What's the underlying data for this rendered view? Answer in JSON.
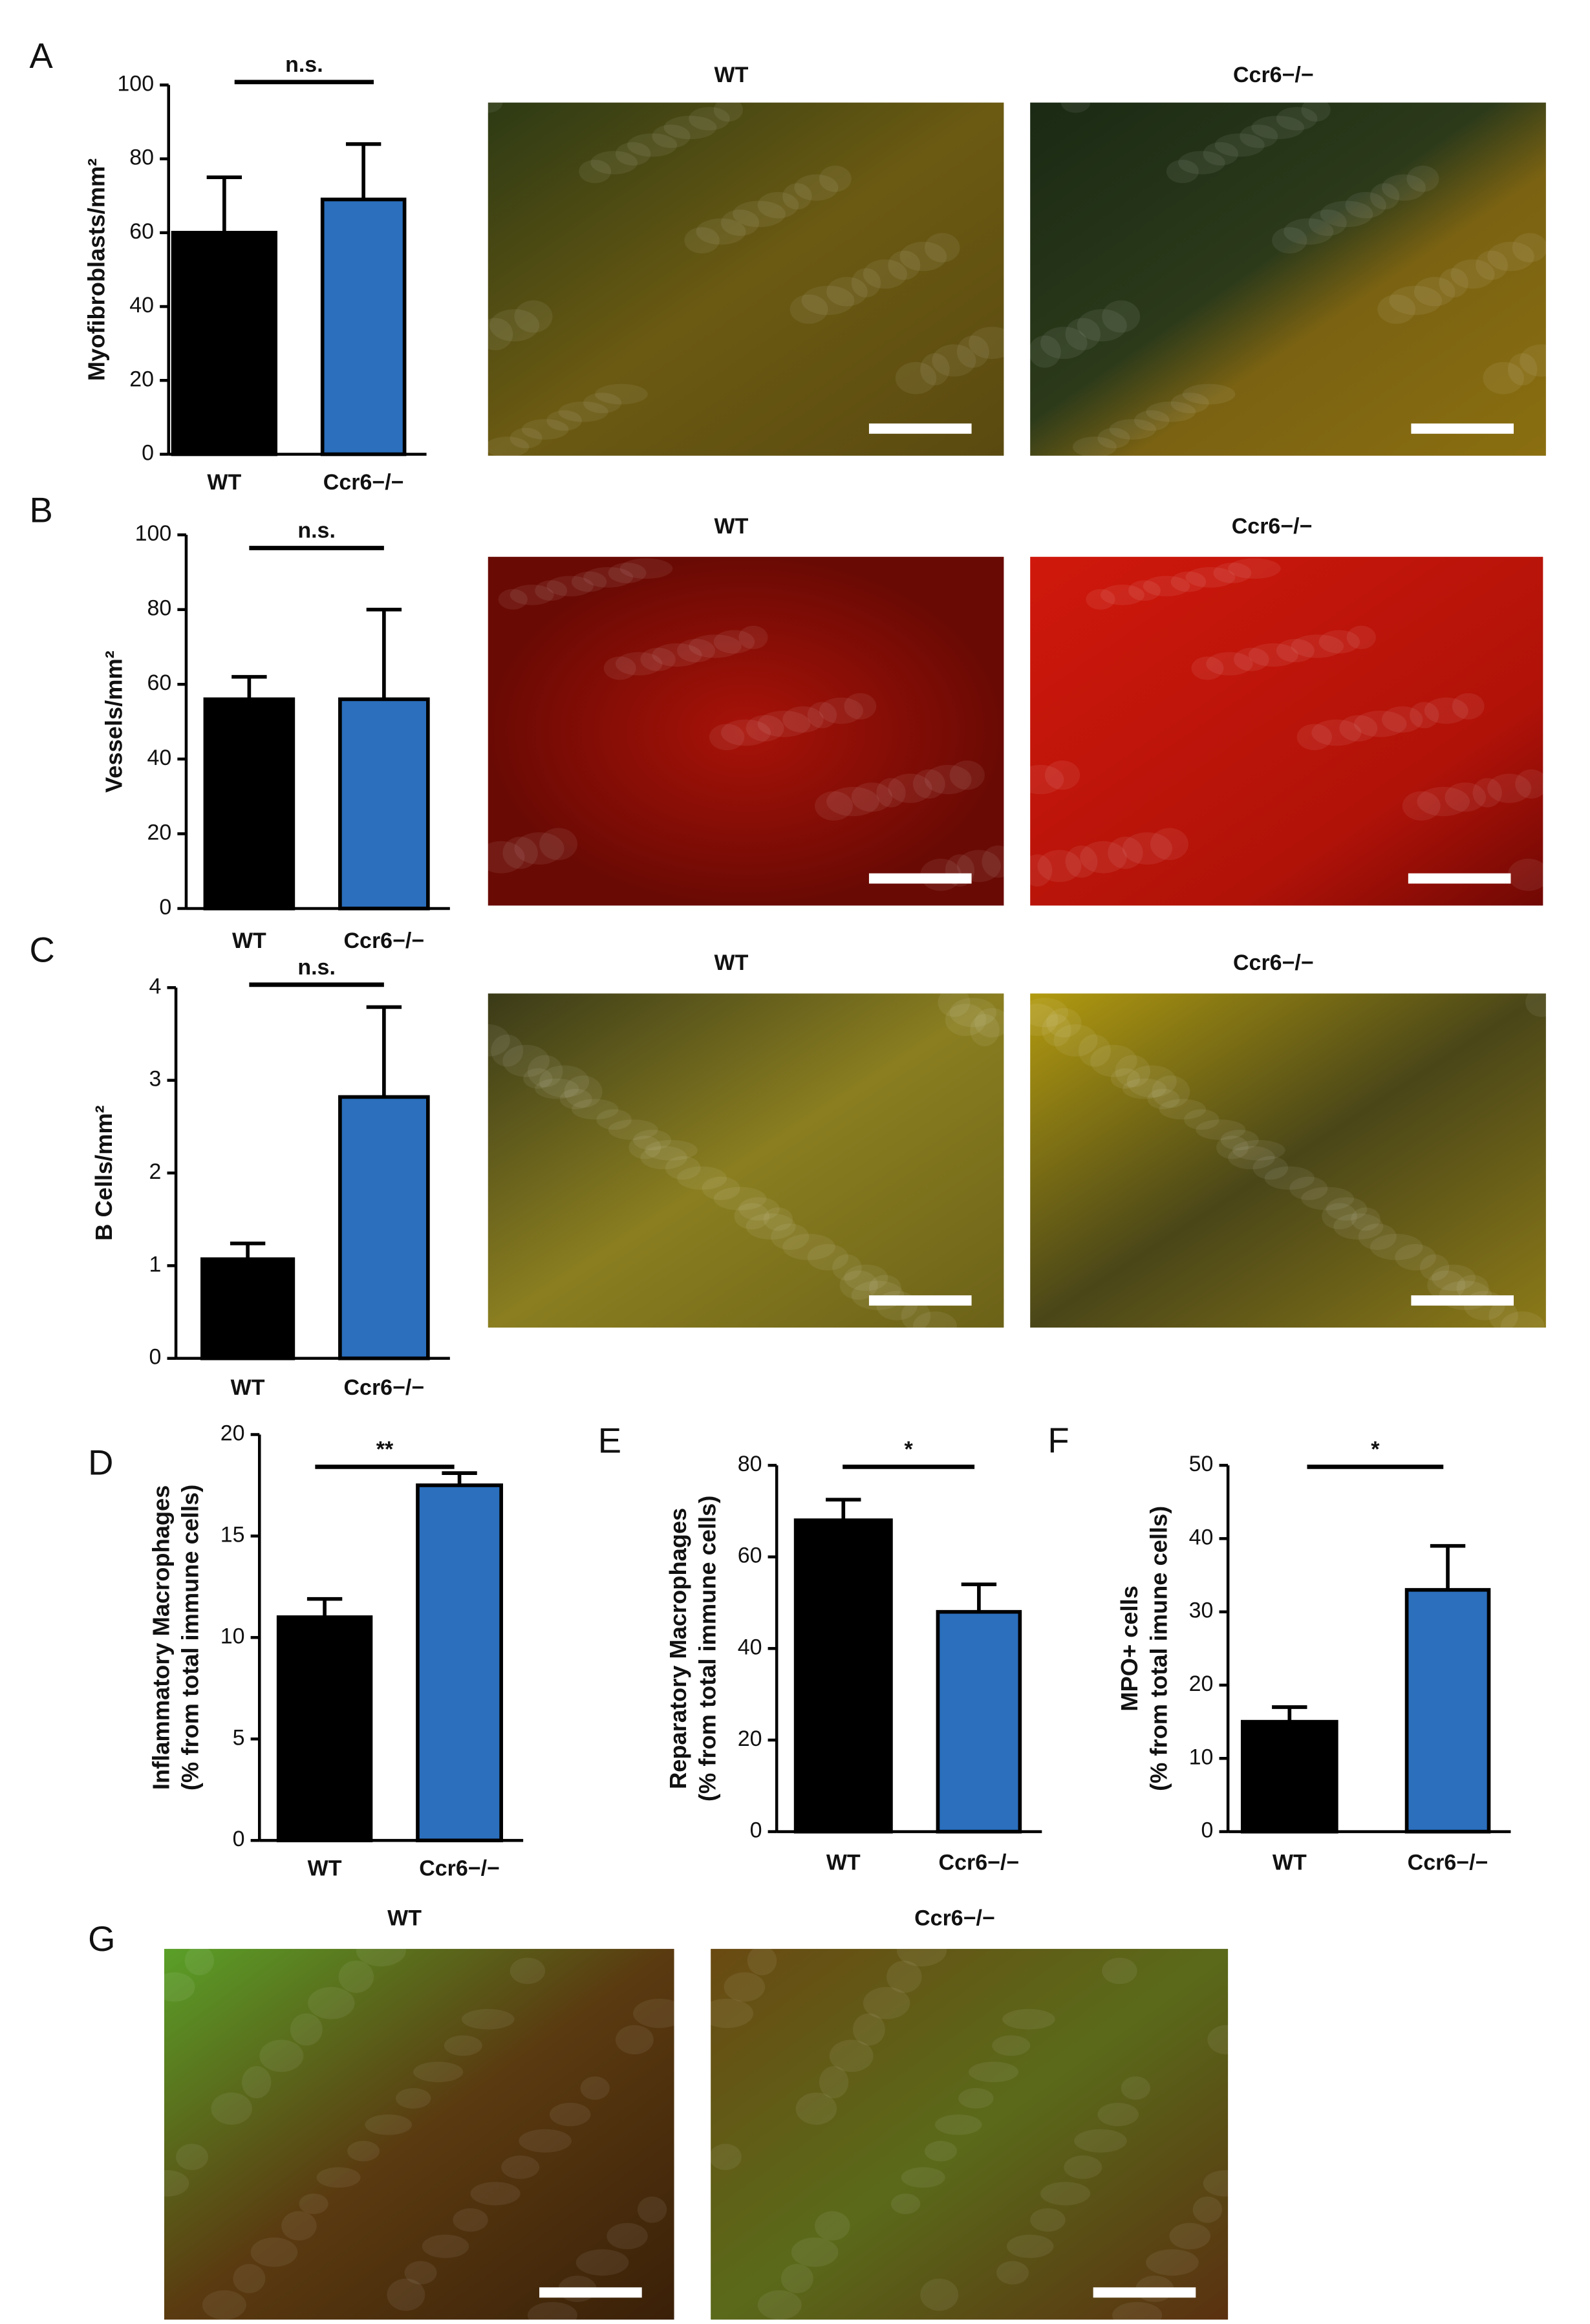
{
  "chart_data": [
    {
      "type": "bar",
      "panel": "A",
      "y_label": [
        "Myofibroblasts/mm²"
      ],
      "categories": [
        "WT",
        "Ccr6−/−"
      ],
      "values": [
        60,
        69
      ],
      "errors": [
        15,
        15
      ],
      "colors": [
        "#000000",
        "#2b6fbd"
      ],
      "ylim": [
        0,
        100
      ],
      "yticks": [
        0,
        20,
        40,
        60,
        80,
        100
      ],
      "annotation": "n.s.",
      "image_labels": [
        "WT",
        "Ccr6−/−"
      ]
    },
    {
      "type": "bar",
      "panel": "B",
      "y_label": [
        "Vessels/mm²"
      ],
      "categories": [
        "WT",
        "Ccr6−/−"
      ],
      "values": [
        56,
        56
      ],
      "errors": [
        6,
        24
      ],
      "colors": [
        "#000000",
        "#2b6fbd"
      ],
      "ylim": [
        0,
        100
      ],
      "yticks": [
        0,
        20,
        40,
        60,
        80,
        100
      ],
      "annotation": "n.s.",
      "image_labels": [
        "WT",
        "Ccr6−/−"
      ]
    },
    {
      "type": "bar",
      "panel": "C",
      "y_label": [
        "B Cells/mm²"
      ],
      "categories": [
        "WT",
        "Ccr6−/−"
      ],
      "values": [
        1.07,
        2.82
      ],
      "errors": [
        0.17,
        0.97
      ],
      "colors": [
        "#000000",
        "#2b6fbd"
      ],
      "ylim": [
        0,
        4
      ],
      "yticks": [
        0,
        1,
        2,
        3,
        4
      ],
      "annotation": "n.s.",
      "image_labels": [
        "WT",
        "Ccr6−/−"
      ]
    },
    {
      "type": "bar",
      "panel": "D",
      "y_label": [
        "Inflammatory Macrophages",
        "(% from total immune cells)"
      ],
      "categories": [
        "WT",
        "Ccr6−/−"
      ],
      "values": [
        11,
        17.5
      ],
      "errors": [
        0.9,
        0.6
      ],
      "colors": [
        "#000000",
        "#2b6fbd"
      ],
      "ylim": [
        0,
        20
      ],
      "yticks": [
        0,
        5,
        10,
        15,
        20
      ],
      "annotation": "**"
    },
    {
      "type": "bar",
      "panel": "E",
      "y_label": [
        "Reparatory Macrophages",
        "(% from total immune cells)"
      ],
      "categories": [
        "WT",
        "Ccr6−/−"
      ],
      "values": [
        68,
        48
      ],
      "errors": [
        4.5,
        6
      ],
      "colors": [
        "#000000",
        "#2b6fbd"
      ],
      "ylim": [
        0,
        80
      ],
      "yticks": [
        0,
        20,
        40,
        60,
        80
      ],
      "annotation": "*"
    },
    {
      "type": "bar",
      "panel": "F",
      "y_label": [
        "MPO+ cells",
        "(% from total imune cells)"
      ],
      "categories": [
        "WT",
        "Ccr6−/−"
      ],
      "values": [
        15,
        33
      ],
      "errors": [
        2,
        6
      ],
      "colors": [
        "#000000",
        "#2b6fbd"
      ],
      "ylim": [
        0,
        50
      ],
      "yticks": [
        0,
        10,
        20,
        30,
        40,
        50
      ],
      "annotation": "*"
    },
    {
      "type": "image",
      "panel": "G",
      "image_labels": [
        "WT",
        "Ccr6−/−"
      ]
    }
  ]
}
